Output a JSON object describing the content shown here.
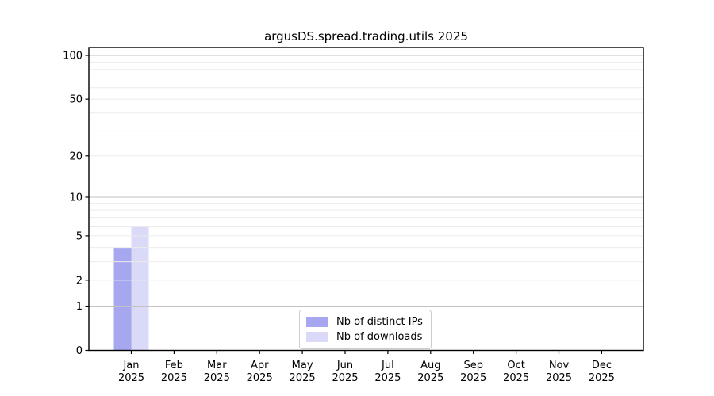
{
  "chart_data": {
    "type": "bar",
    "title": "argusDS.spread.trading.utils 2025",
    "categories": [
      "Jan 2025",
      "Feb 2025",
      "Mar 2025",
      "Apr 2025",
      "May 2025",
      "Jun 2025",
      "Jul 2025",
      "Aug 2025",
      "Sep 2025",
      "Oct 2025",
      "Nov 2025",
      "Dec 2025"
    ],
    "series": [
      {
        "name": "Nb of distinct IPs",
        "color": "#a7a7f0",
        "values": [
          4,
          0,
          0,
          0,
          0,
          0,
          0,
          0,
          0,
          0,
          0,
          0
        ]
      },
      {
        "name": "Nb of downloads",
        "color": "#dadaf8",
        "values": [
          6,
          0,
          0,
          0,
          0,
          0,
          0,
          0,
          0,
          0,
          0,
          0
        ]
      }
    ],
    "xlabel": "",
    "ylabel": "",
    "yscale": "log1p",
    "ylim": [
      0,
      115
    ],
    "yticks": [
      0,
      1,
      2,
      5,
      10,
      20,
      50,
      100
    ],
    "gridlines": {
      "major": [
        1,
        10,
        100
      ],
      "minor": [
        2,
        3,
        4,
        5,
        6,
        7,
        8,
        9,
        20,
        30,
        40,
        50,
        60,
        70,
        80,
        90
      ]
    },
    "grid": true,
    "legend_position": "lower center",
    "colors": {
      "axis": "#000000",
      "grid_major": "#c2c2c2",
      "grid_minor": "#ebebeb",
      "background": "#ffffff"
    }
  }
}
